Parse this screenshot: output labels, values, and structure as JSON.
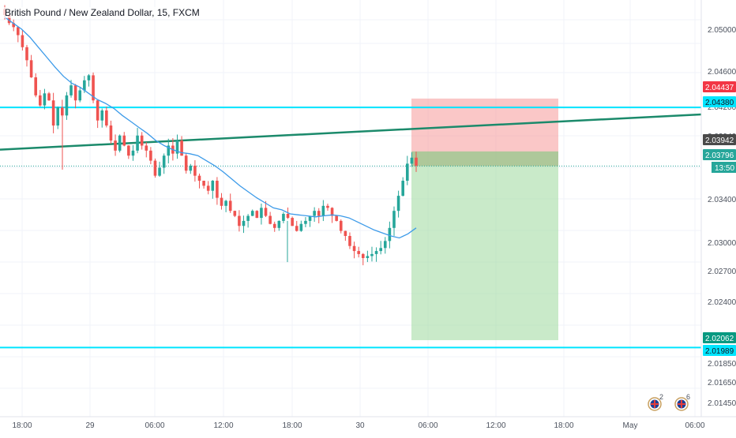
{
  "header": {
    "symbol_title": "British Pound / New Zealand Dollar, 15, FXCM"
  },
  "colors": {
    "up": "#26a69a",
    "down": "#ef5350",
    "ma": "#3d9be9",
    "hline": "#00e5ff",
    "trendline": "#1b8a6b",
    "stop_zone": "#f7a1a1",
    "target_zone": "#a5dca5",
    "grid": "#f0f3fa",
    "axis_text": "#4c525e"
  },
  "price_axis": {
    "ticks": [
      "2.05000",
      "2.04600",
      "2.04200",
      "2.03940",
      "2.03400",
      "2.03000",
      "2.02700",
      "2.02400",
      "2.01850",
      "2.01650",
      "2.01450"
    ],
    "labels": [
      {
        "value": 2.04437,
        "text": "2.04437",
        "color": "#f23645",
        "text_color": "#ffffff"
      },
      {
        "value": 2.0438,
        "text": "2.04380",
        "color": "#00e5ff",
        "text_color": "#131722"
      },
      {
        "value": 2.03942,
        "text": "2.03942",
        "color": "#4a4a4a",
        "text_color": "#ffffff"
      },
      {
        "value": 2.03796,
        "text": "2.03796",
        "color": "#26a69a",
        "text_color": "#ffffff"
      },
      {
        "value": 2.02062,
        "text": "2.02062",
        "color": "#089981",
        "text_color": "#ffffff"
      },
      {
        "value": 2.01989,
        "text": "2.01989",
        "color": "#00e5ff",
        "text_color": "#131722"
      }
    ],
    "countdown": "13:50"
  },
  "time_axis": {
    "ticks": [
      "18:00",
      "29",
      "06:00",
      "12:00",
      "18:00",
      "30",
      "06:00",
      "12:00",
      "18:00",
      "May",
      "06:00"
    ]
  },
  "events": [
    {
      "icon": "uk-flag-icon",
      "count": "2"
    },
    {
      "icon": "uk-flag-icon",
      "count": "6"
    }
  ],
  "chart_data": {
    "type": "candlestick",
    "series_ma": "moving-average",
    "horizontal_lines": [
      2.0438,
      2.01989
    ],
    "trendline": {
      "from": 2.0396,
      "to": 2.0431
    },
    "position": {
      "type": "short",
      "entry": 2.03796,
      "stop": 2.04437,
      "target": 2.02062
    },
    "ohlc_path": [
      2.053,
      2.0522,
      2.0518,
      2.051,
      2.0498,
      2.0485,
      2.0468,
      2.045,
      2.044,
      2.0452,
      2.0445,
      2.042,
      2.0438,
      2.043,
      2.045,
      2.046,
      2.0445,
      2.0455,
      2.0465,
      2.047,
      2.0445,
      2.0425,
      2.0435,
      2.042,
      2.0405,
      2.0395,
      2.041,
      2.04,
      2.039,
      2.0395,
      2.041,
      2.04,
      2.0395,
      2.0385,
      2.037,
      2.0378,
      2.039,
      2.04,
      2.0392,
      2.0405,
      2.039,
      2.0375,
      2.038,
      2.037,
      2.0365,
      2.036,
      2.0355,
      2.0365,
      2.0348,
      2.034,
      2.0345,
      2.0335,
      2.033,
      2.032,
      2.0325,
      2.033,
      2.0335,
      2.0328,
      2.0338,
      2.033,
      2.0322,
      2.0318,
      2.0325,
      2.0332,
      2.0328,
      2.032,
      2.0315,
      2.0322,
      2.0325,
      2.033,
      2.0335,
      2.033,
      2.034,
      2.0338,
      2.033,
      2.0325,
      2.0315,
      2.031,
      2.03,
      2.0295,
      2.0292,
      2.0288,
      2.029,
      2.0292,
      2.0295,
      2.0298,
      2.0305,
      2.0318,
      2.0335,
      2.035,
      2.0365,
      2.0382,
      2.0388,
      2.038
    ],
    "ma_path": [
      2.0528,
      2.0522,
      2.0516,
      2.0508,
      2.0498,
      2.0488,
      2.0478,
      2.0469,
      2.0462,
      2.0458,
      2.0452,
      2.0446,
      2.0442,
      2.0437,
      2.043,
      2.0424,
      2.0418,
      2.0412,
      2.0405,
      2.04,
      2.0396,
      2.0393,
      2.0392,
      2.039,
      2.0385,
      2.038,
      2.0374,
      2.0367,
      2.036,
      2.0354,
      2.0348,
      2.0343,
      2.0338,
      2.0336,
      2.0332,
      2.0331,
      2.033,
      2.0329,
      2.033,
      2.0331,
      2.033,
      2.0328,
      2.0324,
      2.032,
      2.0316,
      2.0313,
      2.031,
      2.0308,
      2.0312,
      2.0318
    ]
  }
}
